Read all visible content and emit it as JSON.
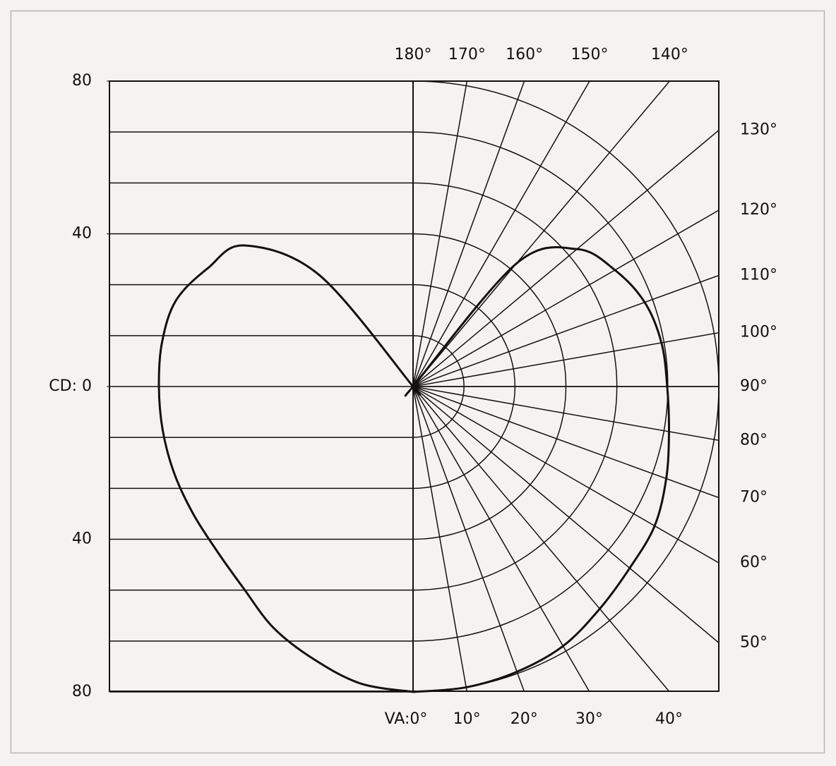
{
  "chart_data": {
    "type": "polar",
    "rlim": [
      0,
      80
    ],
    "rticks": [
      {
        "value": 0,
        "label": "CD: 0"
      },
      40,
      80
    ],
    "rgrid": [
      13.333,
      26.667,
      40,
      53.333,
      66.667,
      80
    ],
    "aticks": [
      {
        "value": 0,
        "label": "VA:0°"
      },
      {
        "value": 10,
        "label": "10°"
      },
      {
        "value": 20,
        "label": "20°"
      },
      {
        "value": 30,
        "label": "30°"
      },
      {
        "value": 40,
        "label": "40°"
      },
      {
        "value": 50,
        "label": "50°"
      },
      {
        "value": 60,
        "label": "60°"
      },
      {
        "value": 70,
        "label": "70°"
      },
      {
        "value": 80,
        "label": "80°"
      },
      {
        "value": 90,
        "label": "90°"
      },
      {
        "value": 100,
        "label": "100°"
      },
      {
        "value": 110,
        "label": "110°"
      },
      {
        "value": 120,
        "label": "120°"
      },
      {
        "value": 130,
        "label": "130°"
      },
      {
        "value": 140,
        "label": "140°"
      },
      {
        "value": 150,
        "label": "150°"
      },
      {
        "value": 160,
        "label": "160°"
      },
      {
        "value": 170,
        "label": "170°"
      },
      {
        "value": 180,
        "label": "180°"
      }
    ],
    "x": [
      0,
      10,
      20,
      30,
      40,
      50,
      60,
      70,
      80,
      90,
      100,
      110,
      120,
      130,
      140,
      150,
      160,
      170,
      180
    ],
    "series": [
      {
        "side": "left",
        "color": "#111111",
        "values": [
          80,
          79,
          76,
          73,
          69,
          67,
          66.5,
          66.5,
          66.5,
          66.5,
          66.7,
          66,
          62,
          57.5,
          38,
          0,
          0,
          0,
          0
        ]
      },
      {
        "side": "right",
        "color": "#111111",
        "values": [
          80,
          80,
          79.5,
          78.5,
          76,
          74,
          73,
          70.5,
          68,
          66.5,
          66,
          64.5,
          61,
          56,
          42,
          0,
          0,
          0,
          0
        ]
      }
    ]
  }
}
